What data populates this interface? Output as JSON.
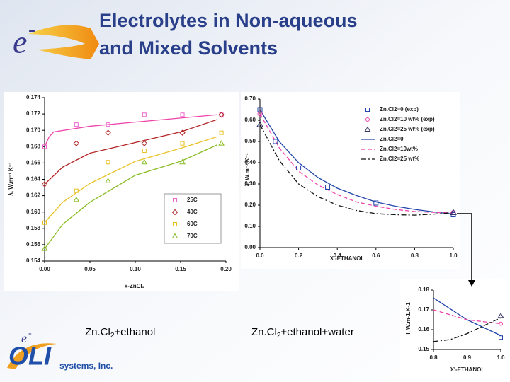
{
  "title_lines": [
    "Electrolytes in Non-aqueous",
    "and Mixed Solvents"
  ],
  "logo": {
    "mark": "e",
    "sup": "-",
    "name": "OLI",
    "tagline": "systems, Inc."
  },
  "captions": [
    [
      "Zn.Cl",
      "2",
      "+ethanol"
    ],
    [
      "Zn.Cl",
      "2",
      "+ethanol+water"
    ]
  ],
  "chart_data": [
    {
      "type": "line",
      "ylabel": "λ, W.m⁻¹ K⁻¹",
      "xlabel": "x-ZnCl₂",
      "xlim": [
        0,
        0.2
      ],
      "ylim": [
        0.154,
        0.174
      ],
      "xticks": [
        {
          "value": 0,
          "label": "0.00"
        },
        0.05,
        {
          "value": 0.1,
          "label": "0.10"
        },
        0.15,
        {
          "value": 0.2,
          "label": "0.20"
        }
      ],
      "yticks": [
        0.154,
        0.156,
        0.158,
        {
          "value": 0.16,
          "label": "0.160"
        },
        0.162,
        0.164,
        0.166,
        0.168,
        {
          "value": 0.17,
          "label": "0.170"
        },
        0.172,
        0.174
      ],
      "legend": "lower right",
      "series": [
        {
          "name": "25C",
          "marker": "square",
          "color": "#ee66cc",
          "x": [
            0,
            0.035,
            0.07,
            0.11,
            0.152,
            0.195
          ],
          "values": [
            0.168,
            0.1707,
            0.1707,
            0.1719,
            0.1719,
            0.1719
          ]
        },
        {
          "name": "40C",
          "marker": "diamond",
          "color": "#b22222",
          "x": [
            0,
            0.035,
            0.07,
            0.11,
            0.152,
            0.195
          ],
          "values": [
            0.1634,
            0.1684,
            0.1697,
            0.1684,
            0.1697,
            0.1719
          ]
        },
        {
          "name": "60C",
          "marker": "square",
          "color": "#e8c020",
          "x": [
            0,
            0.035,
            0.07,
            0.11,
            0.152,
            0.195
          ],
          "values": [
            0.1587,
            0.1626,
            0.1661,
            0.1675,
            0.1684,
            0.1697
          ]
        },
        {
          "name": "70C",
          "marker": "triangle",
          "color": "#88bb22",
          "x": [
            0,
            0.035,
            0.07,
            0.11,
            0.152,
            0.195
          ],
          "values": [
            0.1555,
            0.1615,
            0.1638,
            0.1661,
            0.1661,
            0.1684
          ]
        }
      ],
      "curves": [
        {
          "color": "#ee44aa",
          "dash": "solid",
          "x": [
            0,
            0.005,
            0.01,
            0.05,
            0.1,
            0.15,
            0.19
          ],
          "values": [
            0.168,
            0.1692,
            0.1698,
            0.1705,
            0.171,
            0.1715,
            0.1719
          ]
        },
        {
          "color": "#b22222",
          "dash": "solid",
          "x": [
            0,
            0.02,
            0.05,
            0.1,
            0.15,
            0.19
          ],
          "values": [
            0.1634,
            0.1655,
            0.1672,
            0.1685,
            0.1698,
            0.1713
          ]
        },
        {
          "color": "#e8c020",
          "dash": "solid",
          "x": [
            0,
            0.02,
            0.05,
            0.1,
            0.15,
            0.19
          ],
          "values": [
            0.1587,
            0.1612,
            0.1635,
            0.1662,
            0.1678,
            0.1692
          ]
        },
        {
          "color": "#88bb22",
          "dash": "solid",
          "x": [
            0,
            0.02,
            0.05,
            0.1,
            0.15,
            0.19
          ],
          "values": [
            0.1555,
            0.1585,
            0.1612,
            0.1645,
            0.1662,
            0.1682
          ]
        }
      ]
    },
    {
      "type": "line",
      "ylabel": "λ, W.m⁻¹ K⁻¹",
      "xlabel": "X'-ETHANOL",
      "xlim": [
        0,
        1
      ],
      "ylim": [
        0,
        0.7
      ],
      "xticks": [
        {
          "value": 0,
          "label": "0.0"
        },
        0.2,
        0.4,
        0.6,
        0.8,
        {
          "value": 1,
          "label": "1.0"
        }
      ],
      "yticks": [
        {
          "value": 0,
          "label": "0.00"
        },
        {
          "value": 0.1,
          "label": "0.10"
        },
        {
          "value": 0.2,
          "label": "0.20"
        },
        {
          "value": 0.3,
          "label": "0.30"
        },
        {
          "value": 0.4,
          "label": "0.40"
        },
        {
          "value": 0.5,
          "label": "0.50"
        },
        {
          "value": 0.6,
          "label": "0.60"
        },
        {
          "value": 0.7,
          "label": "0.70"
        }
      ],
      "legend": "upper right",
      "series": [
        {
          "name": "Zn.Cl2=0 (exp)",
          "marker": "square",
          "color": "#2244aa",
          "x": [
            0,
            0.08,
            0.2,
            0.35,
            0.6,
            1
          ],
          "values": [
            0.65,
            0.5,
            0.375,
            0.285,
            0.21,
            0.155
          ]
        },
        {
          "name": "Zn.Cl2=10 wt% (exp)",
          "marker": "circle",
          "color": "#ee44aa",
          "x": [
            0,
            1
          ],
          "values": [
            0.63,
            0.165
          ]
        },
        {
          "name": "Zn.Cl2=25 wt% (exp)",
          "marker": "triangle",
          "color": "#333366",
          "x": [
            0,
            1
          ],
          "values": [
            0.58,
            0.165
          ]
        }
      ],
      "curves": [
        {
          "name": "Zn.Cl2=0",
          "color": "#2244aa",
          "dash": "solid",
          "x": [
            0,
            0.1,
            0.2,
            0.3,
            0.4,
            0.5,
            0.6,
            0.7,
            0.8,
            0.9,
            1
          ],
          "values": [
            0.65,
            0.5,
            0.4,
            0.33,
            0.28,
            0.245,
            0.215,
            0.195,
            0.18,
            0.168,
            0.158
          ]
        },
        {
          "name": "Zn.Cl2=10wt%",
          "color": "#ee44aa",
          "dash": "dashed",
          "x": [
            0,
            0.1,
            0.2,
            0.3,
            0.4,
            0.5,
            0.6,
            0.7,
            0.8,
            0.9,
            1
          ],
          "values": [
            0.63,
            0.47,
            0.36,
            0.295,
            0.25,
            0.215,
            0.195,
            0.18,
            0.17,
            0.166,
            0.163
          ]
        },
        {
          "name": "Zn.Cl2=25 wt%",
          "color": "#111111",
          "dash": "dashdot",
          "x": [
            0,
            0.1,
            0.2,
            0.3,
            0.4,
            0.5,
            0.6,
            0.7,
            0.8,
            0.9,
            1
          ],
          "values": [
            0.58,
            0.41,
            0.3,
            0.24,
            0.2,
            0.175,
            0.16,
            0.155,
            0.153,
            0.158,
            0.165
          ]
        }
      ]
    },
    {
      "type": "line",
      "ylabel": "l, W.m-1.K-1",
      "xlabel": "X'-ETHANOL",
      "xlim": [
        0.8,
        1
      ],
      "ylim": [
        0.15,
        0.18
      ],
      "xticks": [
        0.8,
        0.9,
        {
          "value": 1,
          "label": "1.0"
        }
      ],
      "yticks": [
        0.15,
        0.16,
        0.17,
        0.18
      ],
      "series": [
        {
          "marker": "square",
          "color": "#2244aa",
          "x": [
            1
          ],
          "values": [
            0.156
          ]
        },
        {
          "marker": "circle",
          "color": "#ee44aa",
          "x": [
            1
          ],
          "values": [
            0.163
          ]
        },
        {
          "marker": "triangle",
          "color": "#333366",
          "x": [
            1
          ],
          "values": [
            0.167
          ]
        }
      ],
      "curves": [
        {
          "color": "#2244aa",
          "dash": "solid",
          "x": [
            0.8,
            0.9,
            1
          ],
          "values": [
            0.176,
            0.165,
            0.157
          ]
        },
        {
          "color": "#ee44aa",
          "dash": "dashed",
          "x": [
            0.8,
            0.9,
            1
          ],
          "values": [
            0.17,
            0.165,
            0.163
          ]
        },
        {
          "color": "#111111",
          "dash": "dashdot",
          "x": [
            0.8,
            0.85,
            0.9,
            0.95,
            1
          ],
          "values": [
            0.154,
            0.155,
            0.158,
            0.162,
            0.166
          ]
        }
      ]
    }
  ]
}
